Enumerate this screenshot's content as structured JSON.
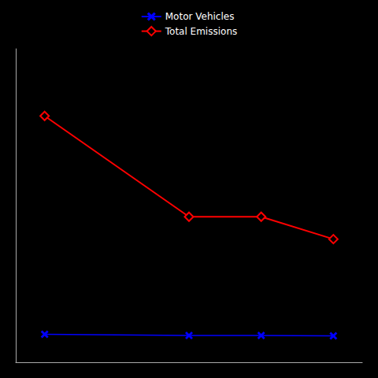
{
  "chart_data": {
    "type": "line",
    "x": [
      1990,
      2000,
      2005,
      2010
    ],
    "series": [
      {
        "name": "Total Emissions",
        "color": "#ff0000",
        "marker": "diamond",
        "values": [
          22000,
          13000,
          13000,
          11000
        ]
      },
      {
        "name": "Motor Vehicles",
        "color": "#0000ff",
        "marker": "x",
        "values": [
          2500,
          2400,
          2400,
          2350
        ]
      }
    ],
    "xlim": [
      1988,
      2012
    ],
    "ylim": [
      0,
      28000
    ],
    "tick_labels": false,
    "grid": false,
    "legend": "upper center"
  }
}
